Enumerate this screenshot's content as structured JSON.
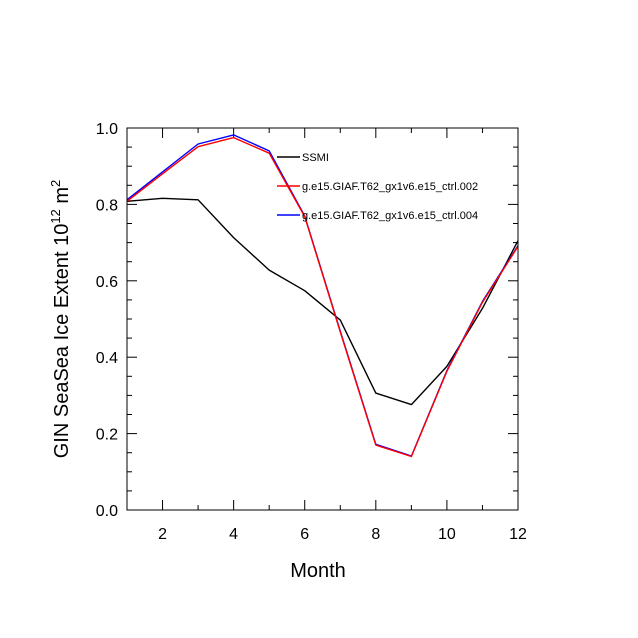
{
  "chart_data": {
    "type": "line",
    "title": "",
    "xlabel": "Month",
    "ylabel_main": "GIN SeaSea Ice Extent 10",
    "ylabel_sup": "12",
    "ylabel_unit": " m",
    "ylabel_unit_sup": "2",
    "xlim": [
      1,
      12
    ],
    "ylim": [
      0.0,
      1.0
    ],
    "x_ticks": [
      2,
      4,
      6,
      8,
      10,
      12
    ],
    "x_tick_labels": [
      "2",
      "4",
      "6",
      "8",
      "10",
      "12"
    ],
    "y_ticks": [
      0.0,
      0.2,
      0.4,
      0.6,
      0.8,
      1.0
    ],
    "y_tick_labels": [
      "0.0",
      "0.2",
      "0.4",
      "0.6",
      "0.8",
      "1.0"
    ],
    "x": [
      1,
      2,
      3,
      4,
      5,
      6,
      7,
      8,
      9,
      10,
      11,
      12
    ],
    "series": [
      {
        "name": "SSMI",
        "color": "#000000",
        "values": [
          0.808,
          0.816,
          0.812,
          0.713,
          0.628,
          0.574,
          0.497,
          0.306,
          0.276,
          0.376,
          0.528,
          0.705
        ]
      },
      {
        "name": "g.e15.GIAF.T62_gx1v6.e15_ctrl.002",
        "color": "#ff0000",
        "values": [
          0.808,
          0.88,
          0.951,
          0.975,
          0.934,
          0.768,
          0.466,
          0.17,
          0.14,
          0.363,
          0.544,
          0.69
        ]
      },
      {
        "name": "g.e15.GIAF.T62_gx1v6.e15_ctrl.004",
        "color": "#0000ff",
        "values": [
          0.812,
          0.885,
          0.958,
          0.982,
          0.94,
          0.77,
          0.468,
          0.172,
          0.141,
          0.365,
          0.546,
          0.692
        ]
      }
    ],
    "legend_position": "top-right"
  }
}
